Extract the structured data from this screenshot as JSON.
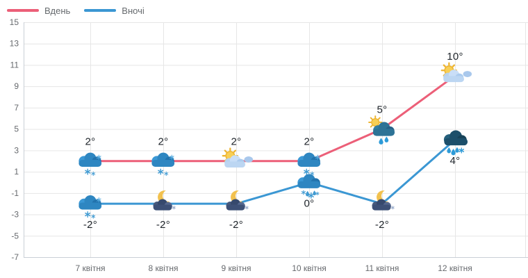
{
  "chart_data": {
    "type": "line",
    "title": "",
    "categories": [
      "7 квітня",
      "8 квітня",
      "9 квітня",
      "10 квітня",
      "11 квітня",
      "12 квітня"
    ],
    "series": [
      {
        "name": "Вдень",
        "color": "#ec5f78",
        "values": [
          2,
          2,
          2,
          2,
          5,
          10
        ],
        "point_labels": [
          "2°",
          "2°",
          "2°",
          "2°",
          "5°",
          "10°"
        ],
        "label_position": "above",
        "icons": [
          "snow-cloud-icon",
          "snow-cloud-icon",
          "sun-cloud-icon",
          "snow-cloud-icon",
          "sun-rain-cloud-icon",
          "sun-cloud-icon"
        ]
      },
      {
        "name": "Вночі",
        "color": "#3b97d3",
        "values": [
          -2,
          -2,
          -2,
          0,
          -2,
          4
        ],
        "point_labels": [
          "-2°",
          "-2°",
          "-2°",
          "0°",
          "-2°",
          "4°"
        ],
        "label_position": "below",
        "icons": [
          "snow-cloud-icon",
          "moon-cloud-icon",
          "moon-cloud-icon",
          "sleet-cloud-icon",
          "moon-cloud-icon",
          "dark-sleet-cloud-icon"
        ]
      }
    ],
    "ylim": [
      -7,
      15
    ],
    "yticks": [
      15,
      13,
      11,
      9,
      7,
      5,
      3,
      1,
      -1,
      -3,
      -5,
      -7
    ],
    "grid": true,
    "legend_position": "top-left",
    "colors": {
      "grid": "#e6e6e6",
      "axis": "#c9cfd6",
      "tick_label": "#66696d",
      "point_label": "#20262c"
    }
  }
}
